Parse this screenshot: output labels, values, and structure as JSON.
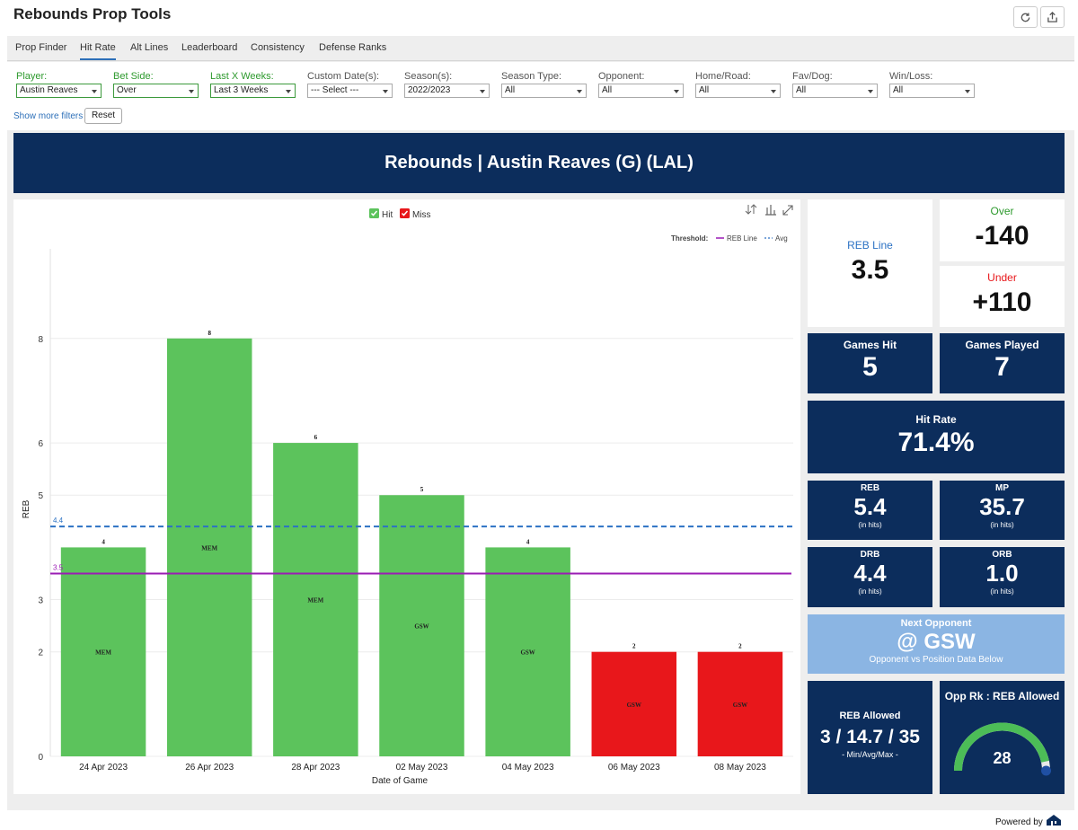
{
  "app": {
    "title": "Rebounds Prop Tools",
    "refresh_icon": "refresh-icon",
    "export_icon": "export-icon",
    "powered_by": "Powered by"
  },
  "tabs": [
    "Prop Finder",
    "Hit Rate",
    "Alt Lines",
    "Leaderboard",
    "Consistency",
    "Defense Ranks"
  ],
  "filters": [
    {
      "label": "Player:",
      "value": "Austin Reaves",
      "accent": true
    },
    {
      "label": "Bet Side:",
      "value": "Over",
      "accent": true
    },
    {
      "label": "Last X Weeks:",
      "value": "Last 3 Weeks",
      "accent": true
    },
    {
      "label": "Custom Date(s):",
      "value": "--- Select ---",
      "accent": false
    },
    {
      "label": "Season(s):",
      "value": "2022/2023",
      "accent": false
    },
    {
      "label": "Season Type:",
      "value": "All",
      "accent": false
    },
    {
      "label": "Opponent:",
      "value": "All",
      "accent": false
    },
    {
      "label": "Home/Road:",
      "value": "All",
      "accent": false
    },
    {
      "label": "Fav/Dog:",
      "value": "All",
      "accent": false
    },
    {
      "label": "Win/Loss:",
      "value": "All",
      "accent": false
    }
  ],
  "more_filters": "Show more filters",
  "reset": "Reset",
  "banner": "Rebounds | Austin Reaves (G) (LAL)",
  "legend": {
    "hit": "Hit",
    "miss": "Miss",
    "threshold": "Threshold:",
    "line": "REB Line",
    "avg": "Avg"
  },
  "colors": {
    "hit": "#5cc35c",
    "miss": "#e8171b",
    "line": "#9b1bb5",
    "avg": "#2c72c4",
    "navy": "#0c2d5c"
  },
  "chart_data": {
    "type": "bar",
    "categories": [
      "24 Apr 2023",
      "26 Apr 2023",
      "28 Apr 2023",
      "02 May 2023",
      "04 May 2023",
      "06 May 2023",
      "08 May 2023"
    ],
    "values": [
      4,
      8,
      6,
      5,
      4,
      2,
      2
    ],
    "opponents": [
      "MEM",
      "MEM",
      "MEM",
      "GSW",
      "GSW",
      "GSW",
      "GSW"
    ],
    "result": [
      "hit",
      "hit",
      "hit",
      "hit",
      "hit",
      "miss",
      "miss"
    ],
    "xlabel": "Date of Game",
    "ylabel": "REB",
    "y_ticks": [
      0,
      2,
      3,
      5,
      6,
      8
    ],
    "reb_line": 3.5,
    "reb_line_label": "3.5",
    "avg": 4.4,
    "avg_label": "4.4"
  },
  "tiles": {
    "reb_line": {
      "label": "REB Line",
      "value": "3.5"
    },
    "over": {
      "label": "Over",
      "value": "-140"
    },
    "under": {
      "label": "Under",
      "value": "+110"
    },
    "games_hit": {
      "label": "Games Hit",
      "value": "5"
    },
    "games_played": {
      "label": "Games Played",
      "value": "7"
    },
    "hit_rate": {
      "label": "Hit Rate",
      "value": "71.4%"
    },
    "reb": {
      "label": "REB",
      "value": "5.4",
      "sub": "(in hits)"
    },
    "mp": {
      "label": "MP",
      "value": "35.7",
      "sub": "(in hits)"
    },
    "drb": {
      "label": "DRB",
      "value": "4.4",
      "sub": "(in hits)"
    },
    "orb": {
      "label": "ORB",
      "value": "1.0",
      "sub": "(in hits)"
    },
    "next_opp": {
      "label": "Next Opponent",
      "value": "@ GSW",
      "sub": "Opponent vs Position Data Below"
    },
    "reb_allowed": {
      "label": "REB Allowed",
      "value": "3 / 14.7 / 35",
      "sub": "- Min/Avg/Max -"
    },
    "opp_rank": {
      "label": "Opp Rk : REB Allowed",
      "value": "28",
      "max": 30
    }
  }
}
